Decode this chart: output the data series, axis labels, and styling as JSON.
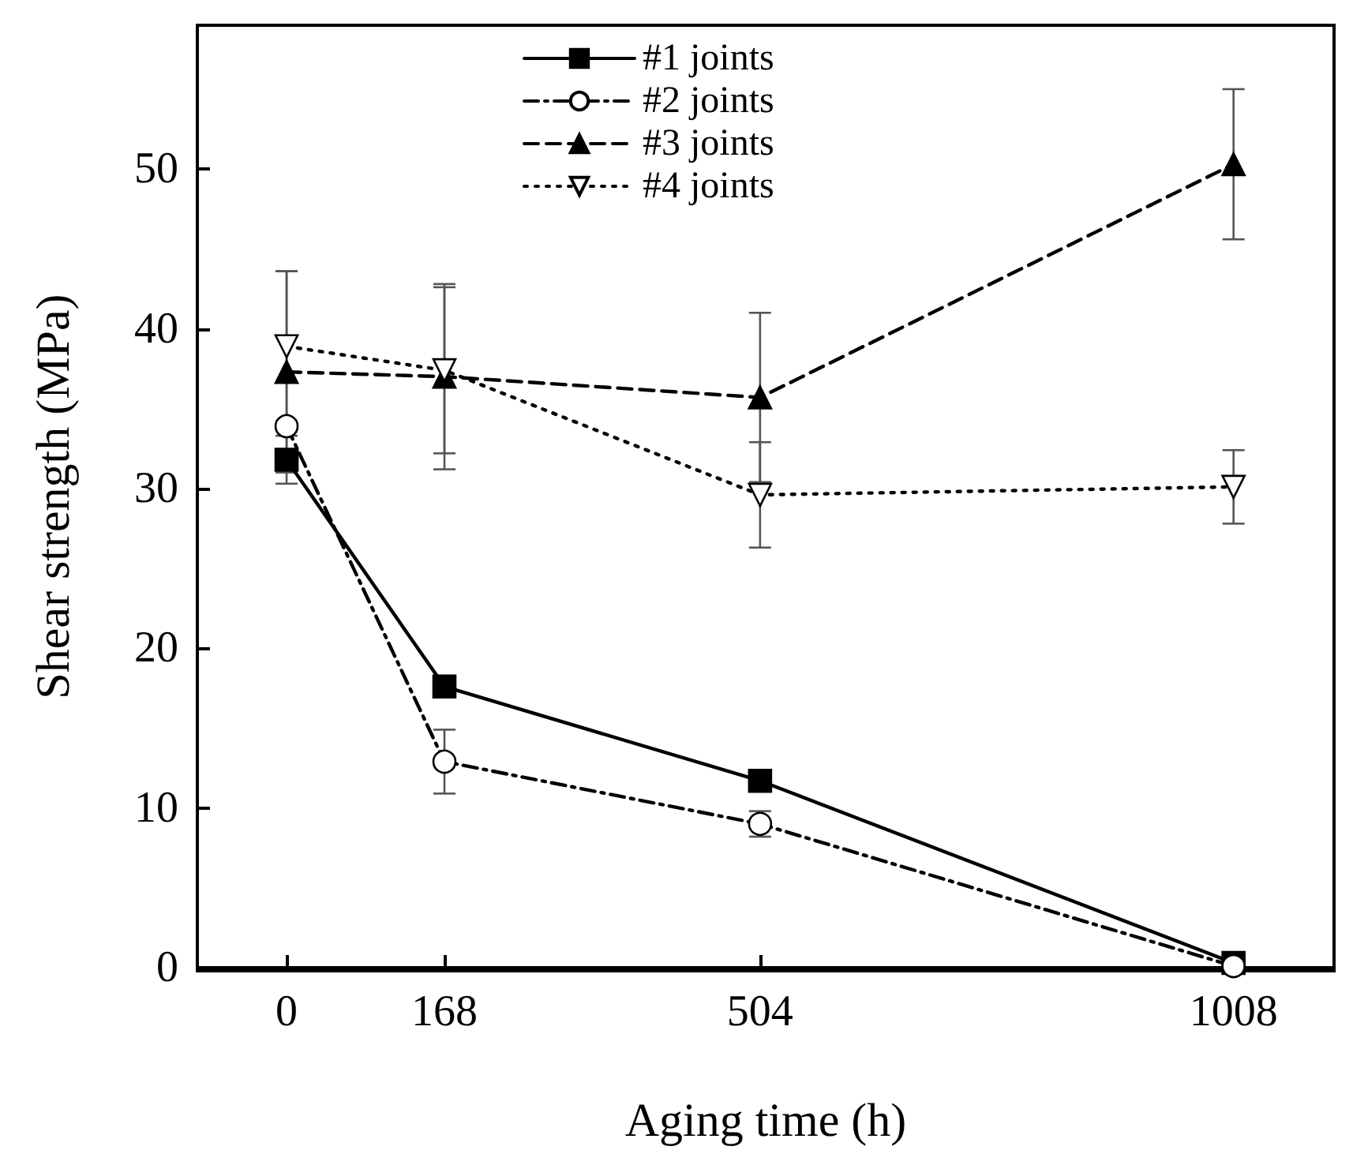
{
  "chart_data": {
    "type": "line",
    "xlabel": "Aging time (h)",
    "ylabel": "Shear strength (MPa)",
    "x": [
      0,
      168,
      504,
      1008
    ],
    "xlim": [
      -95,
      1115
    ],
    "xticks": [
      0,
      168,
      504,
      1008
    ],
    "ylim": [
      0,
      59
    ],
    "yticks": [
      0,
      10,
      20,
      30,
      40,
      50
    ],
    "legend": "top",
    "series": [
      {
        "name": "#1 joints",
        "color": "#000000",
        "marker": "square",
        "line_style": "solid",
        "values": [
          31.8,
          17.6,
          11.7,
          0.3
        ],
        "errors": [
          1.5,
          null,
          null,
          null
        ]
      },
      {
        "name": "#2 joints",
        "color": "#000000",
        "colors": [
          "#ffffff",
          "#ffffff",
          "#ffffff",
          "#ffffff"
        ],
        "marker": "circle",
        "line_style": "dashdot",
        "values": [
          33.9,
          12.9,
          9.0,
          0.1
        ],
        "errors": [
          null,
          2.0,
          0.8,
          null
        ]
      },
      {
        "name": "#3 joints",
        "color": "#000000",
        "marker": "triangle",
        "line_style": "dashed",
        "values": [
          37.3,
          37.0,
          35.7,
          50.3
        ],
        "errors": [
          6.3,
          5.8,
          5.3,
          4.7
        ]
      },
      {
        "name": "#4 joints",
        "color": "#000000",
        "colors": [
          "#ffffff",
          "#ffffff",
          "#ffffff",
          "#ffffff"
        ],
        "marker": "triangle-down",
        "line_style": "dotted",
        "values": [
          38.9,
          37.4,
          29.6,
          30.1
        ],
        "errors": [
          4.7,
          5.2,
          3.3,
          2.3
        ]
      }
    ]
  }
}
